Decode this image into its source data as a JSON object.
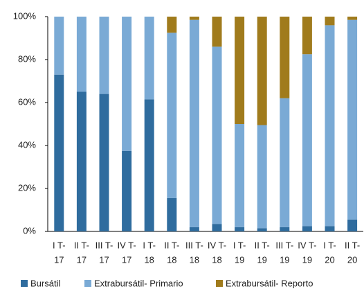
{
  "chart_data": {
    "type": "stacked_bar",
    "categories": [
      [
        "I T-",
        "17"
      ],
      [
        "II T-",
        "17"
      ],
      [
        "III T-",
        "17"
      ],
      [
        "IV T-",
        "17"
      ],
      [
        "I T-",
        "18"
      ],
      [
        "II T-",
        "18"
      ],
      [
        "III T-",
        "18"
      ],
      [
        "IV T-",
        "18"
      ],
      [
        "I T-",
        "19"
      ],
      [
        "II T-",
        "19"
      ],
      [
        "III T-",
        "19"
      ],
      [
        "IV T-",
        "19"
      ],
      [
        "I T-",
        "20"
      ],
      [
        "II T-",
        "20"
      ]
    ],
    "series": [
      {
        "name": "Bursátil",
        "color": "#2f6c9e",
        "values": [
          73,
          65,
          64,
          37.5,
          61.5,
          15.5,
          2,
          3.5,
          2,
          1.5,
          2,
          2.5,
          2.5,
          5.5
        ]
      },
      {
        "name": "Extrabursátil- Primario",
        "color": "#7aaad5",
        "values": [
          27,
          35,
          36,
          62.5,
          38.5,
          77,
          96.5,
          82.5,
          48,
          48,
          60,
          80,
          93.5,
          93
        ]
      },
      {
        "name": "Extrabursátil- Reporto",
        "color": "#a07b1c",
        "values": [
          0,
          0,
          0,
          0,
          0,
          7.5,
          1.5,
          14,
          50,
          50.5,
          38,
          17.5,
          4,
          1.5
        ]
      }
    ],
    "ylim": [
      0,
      100
    ],
    "yticks": [
      {
        "value": 0,
        "label": "0%"
      },
      {
        "value": 20,
        "label": "20%"
      },
      {
        "value": 40,
        "label": "40%"
      },
      {
        "value": 60,
        "label": "60%"
      },
      {
        "value": 80,
        "label": "80%"
      },
      {
        "value": 100,
        "label": "100%"
      }
    ],
    "grid": false,
    "legend": "bottom"
  }
}
